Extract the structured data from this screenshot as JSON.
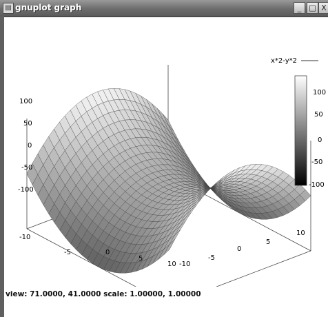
{
  "window": {
    "title": "gnuplot graph",
    "icon": "gnuplot-app-icon",
    "controls": {
      "minimize": "_",
      "maximize": "□",
      "close": "X"
    }
  },
  "plot": {
    "key_label": "x*2-y*2",
    "z_ticks": [
      "100",
      "50",
      "0",
      "-50",
      "-100"
    ],
    "colorbar_ticks": [
      "100",
      "50",
      "0",
      "-50",
      "-100"
    ],
    "x_ticks": [
      "-10",
      "-5",
      "0",
      "5",
      "10"
    ],
    "y_ticks": [
      "-10",
      "-5",
      "0",
      "5",
      "10"
    ],
    "left_axis_bottom_tick": "-10"
  },
  "status": {
    "view_label": "view:",
    "view_values": "71.0000,  41.0000",
    "scale_label": "scale:",
    "scale_values": "1.00000,  1.00000"
  },
  "chart_data": {
    "type": "surface",
    "function": "x*2-y*2",
    "legend": "top-right",
    "xlim": [
      -10,
      10
    ],
    "ylim": [
      -10,
      10
    ],
    "zlim": [
      -100,
      100
    ],
    "colorbar": {
      "min": -100,
      "max": 100,
      "colors": [
        "#000000",
        "#ffffff"
      ]
    },
    "view": {
      "rot_x": 71,
      "rot_z": 41,
      "scale": 1,
      "scale_z": 1
    },
    "grid": false
  }
}
